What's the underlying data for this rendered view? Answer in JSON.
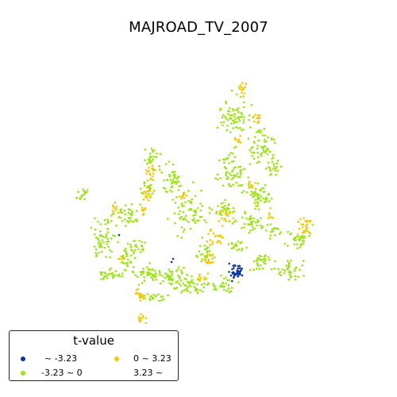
{
  "map": {
    "title": "MAJROAD_TV_2007"
  },
  "legend": {
    "title": "t-value",
    "entries": [
      {
        "label": " ~ -3.23",
        "color": "#0a35a6"
      },
      {
        "label": "-3.23 ~ 0",
        "color": "#98e60c"
      },
      {
        "label": "0 ~ 3.23",
        "color": "#f5c800"
      },
      {
        "label": "3.23 ~",
        "color": "#ffffff"
      }
    ]
  },
  "colors": {
    "neg_sig": "#0a35a6",
    "neg": "#98e60c",
    "pos": "#f5c800",
    "pos_sig": "#ffffff"
  }
}
